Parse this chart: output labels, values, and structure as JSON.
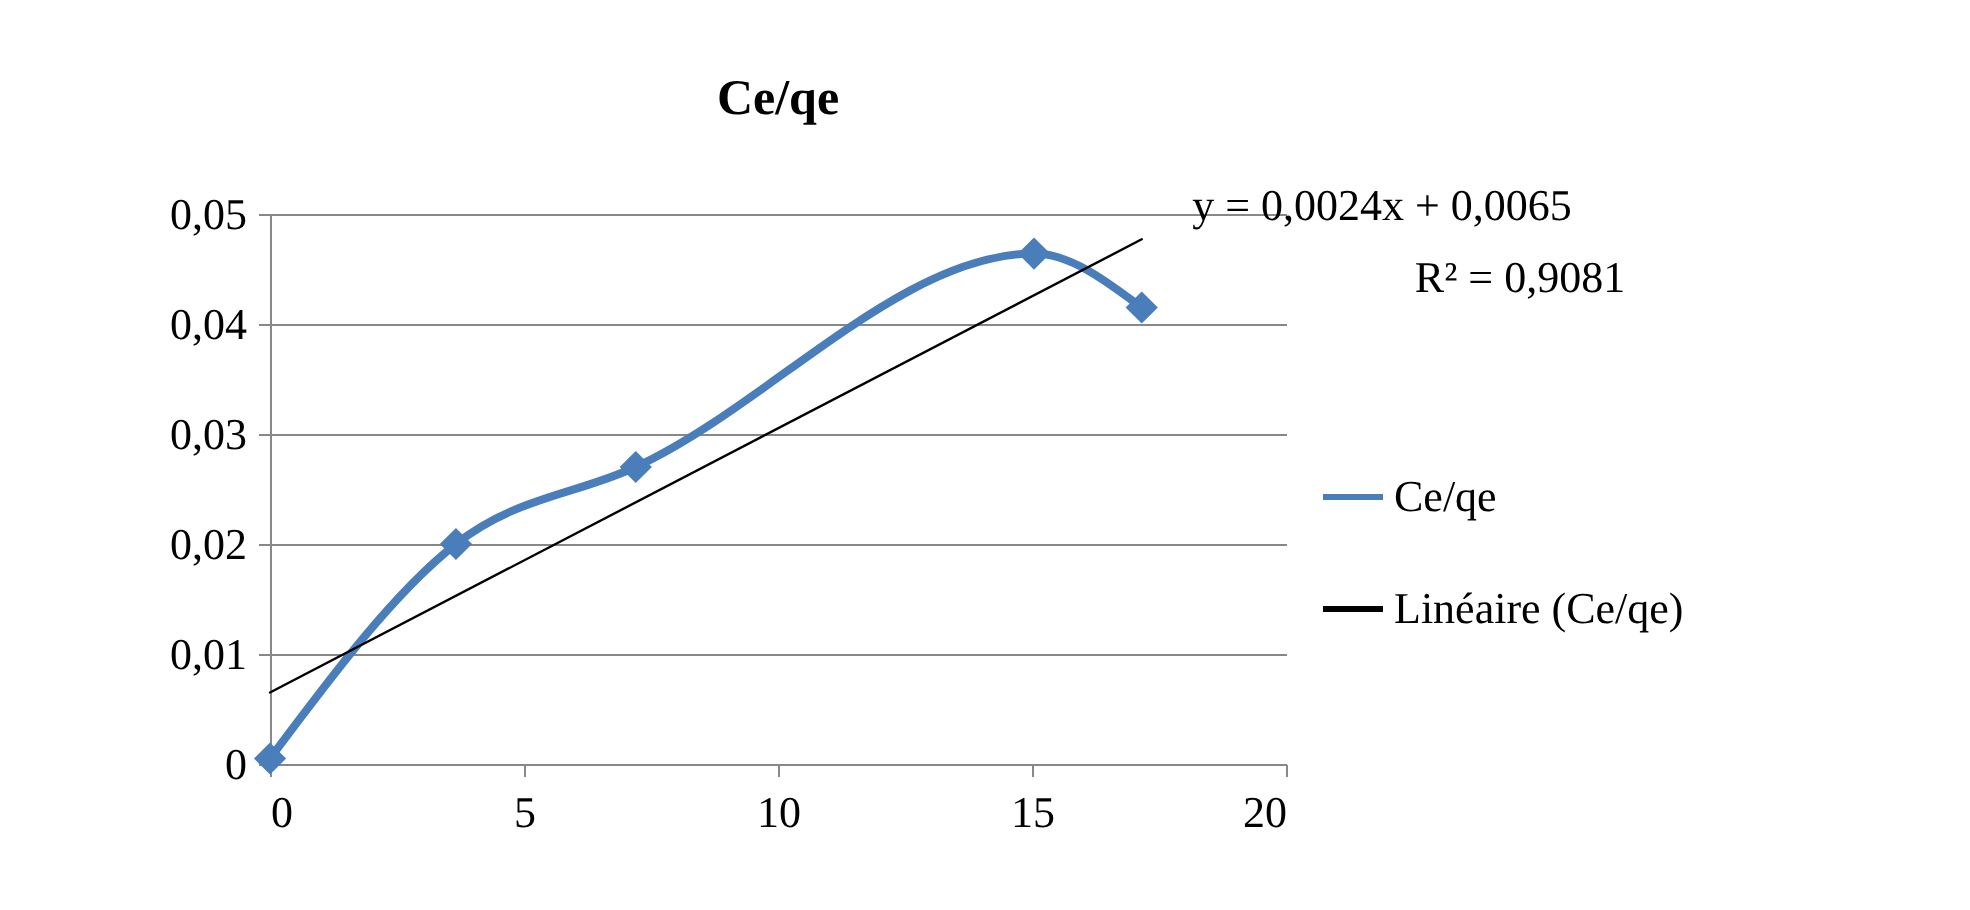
{
  "chart_data": {
    "type": "line",
    "title": "Ce/qe",
    "series": [
      {
        "name": "Ce/qe",
        "color": "#4a7ebb",
        "x": [
          0,
          3.66,
          7.2,
          15.04,
          17.16
        ],
        "values": [
          0.0005,
          0.02,
          0.027,
          0.0464,
          0.0415
        ]
      },
      {
        "name": "Linéaire (Ce/qe)",
        "color": "#000000",
        "marker": "none",
        "x": [
          0,
          17.16
        ],
        "values": [
          0.0065,
          0.0477
        ]
      }
    ],
    "xlim": [
      0,
      20
    ],
    "xticks": [
      0,
      5,
      10,
      15,
      20
    ],
    "ylim": [
      0,
      0.05
    ],
    "yticks": [
      0,
      {
        "value": 0.01,
        "label": "0,01"
      },
      {
        "value": 0.02,
        "label": "0,02"
      },
      {
        "value": 0.03,
        "label": "0,03"
      },
      {
        "value": 0.04,
        "label": "0,04"
      },
      {
        "value": 0.05,
        "label": "0,05"
      }
    ],
    "annotations": [
      "y = 0,0024x + 0,0065",
      "R² = 0,9081"
    ],
    "grid": "y",
    "legend": "right",
    "marker": "diamond"
  }
}
